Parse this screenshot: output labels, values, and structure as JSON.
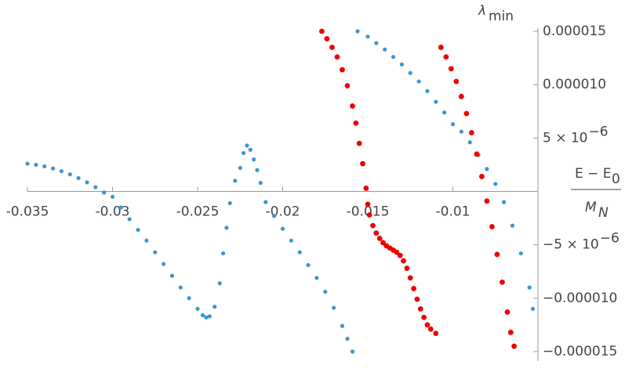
{
  "chart_data": {
    "type": "scatter",
    "ylabel": {
      "text": "λ",
      "sub": "min"
    },
    "xlabel": {
      "numerator": {
        "text": "E − E",
        "sub": "0"
      },
      "denominator": {
        "text": "M",
        "sub": "N"
      }
    },
    "xlim": [
      -0.035,
      -0.005
    ],
    "ylim": [
      -1.5e-05,
      1.5e-05
    ],
    "xticks": [
      -0.035,
      -0.03,
      -0.025,
      -0.02,
      -0.015,
      -0.01
    ],
    "yticks": [
      {
        "value": -1.5e-05,
        "label": "−0.000015"
      },
      {
        "value": -1e-05,
        "label": "−0.000010"
      },
      {
        "value": -5e-06,
        "label": "−5 × 10",
        "exponent": "−6"
      },
      {
        "value": 5e-06,
        "label": "5 × 10",
        "exponent": "−6"
      },
      {
        "value": 1e-05,
        "label": "0.000010"
      },
      {
        "value": 1.5e-05,
        "label": "0.000015"
      }
    ],
    "series": [
      {
        "color": "#3a96cf",
        "x": [
          -0.035,
          -0.0345,
          -0.034,
          -0.0335,
          -0.033,
          -0.0325,
          -0.032,
          -0.0315,
          -0.031,
          -0.0305,
          -0.03,
          -0.0295,
          -0.029,
          -0.0285,
          -0.028,
          -0.0275,
          -0.027,
          -0.0265,
          -0.026,
          -0.0255,
          -0.025,
          -0.0247,
          -0.0245,
          -0.0243,
          -0.024,
          -0.0237,
          -0.0235,
          -0.0233,
          -0.0231,
          -0.0228,
          -0.0225,
          -0.0223,
          -0.0221,
          -0.0219,
          -0.0217,
          -0.0215,
          -0.0213,
          -0.021,
          -0.0205,
          -0.02,
          -0.0195,
          -0.019,
          -0.0185,
          -0.018,
          -0.0175,
          -0.017,
          -0.0165,
          -0.0162,
          -0.0159,
          -0.0156,
          -0.015,
          -0.0145,
          -0.014,
          -0.0135,
          -0.013,
          -0.0125,
          -0.012,
          -0.0115,
          -0.011,
          -0.0105,
          -0.01,
          -0.0095,
          -0.009,
          -0.0085,
          -0.008,
          -0.0075,
          -0.007,
          -0.0065,
          -0.006,
          -0.0055,
          -0.0053
        ],
        "values": [
          2.6e-06,
          2.5e-06,
          2.35e-06,
          2.15e-06,
          1.9e-06,
          1.6e-06,
          1.25e-06,
          8.5e-07,
          4e-07,
          -1e-07,
          -5e-07,
          -1.5e-06,
          -2.6e-06,
          -3.6e-06,
          -4.6e-06,
          -5.7e-06,
          -6.8e-06,
          -7.9e-06,
          -9e-06,
          -1e-05,
          -1.1e-05,
          -1.16e-05,
          -1.18e-05,
          -1.17e-05,
          -1.08e-05,
          -8.6e-06,
          -5.8e-06,
          -3.4e-06,
          -1.1e-06,
          1e-06,
          2.2e-06,
          3.6e-06,
          4.3e-06,
          3.9e-06,
          3e-06,
          2e-06,
          8e-07,
          -1e-06,
          -2.3e-06,
          -3.5e-06,
          -4.6e-06,
          -5.7e-06,
          -6.9e-06,
          -8.1e-06,
          -9.4e-06,
          -1.09e-05,
          -1.26e-05,
          -1.38e-05,
          -1.5e-05,
          1.5e-05,
          1.45e-05,
          1.39e-05,
          1.33e-05,
          1.26e-05,
          1.19e-05,
          1.11e-05,
          1.03e-05,
          9.4e-06,
          8.4e-06,
          7.4e-06,
          6.3e-06,
          5.6e-06,
          4.6e-06,
          3.4e-06,
          2.1e-06,
          7e-07,
          -1e-06,
          -3.2e-06,
          -5.8e-06,
          -9e-06,
          -1.1e-05
        ]
      },
      {
        "color": "#ee0000",
        "x": [
          -0.0177,
          -0.0174,
          -0.0171,
          -0.0168,
          -0.0165,
          -0.0162,
          -0.0159,
          -0.0157,
          -0.0155,
          -0.0153,
          -0.0151,
          -0.015,
          -0.0149,
          -0.0147,
          -0.0145,
          -0.0143,
          -0.0141,
          -0.0139,
          -0.0137,
          -0.0135,
          -0.0133,
          -0.0131,
          -0.0129,
          -0.0127,
          -0.0125,
          -0.0123,
          -0.0121,
          -0.0119,
          -0.0117,
          -0.0115,
          -0.0113,
          -0.011,
          -0.0107,
          -0.0104,
          -0.0101,
          -0.0098,
          -0.0095,
          -0.0092,
          -0.0089,
          -0.0086,
          -0.0083,
          -0.008,
          -0.0077,
          -0.0074,
          -0.0071,
          -0.0068,
          -0.0066,
          -0.0064
        ],
        "values": [
          1.5e-05,
          1.43e-05,
          1.35e-05,
          1.26e-05,
          1.14e-05,
          9.9e-06,
          8e-06,
          6.4e-06,
          4.5e-06,
          2.6e-06,
          3e-07,
          -1.2e-06,
          -2.2e-06,
          -3.2e-06,
          -3.9e-06,
          -4.4e-06,
          -4.8e-06,
          -5.1e-06,
          -5.3e-06,
          -5.5e-06,
          -5.7e-06,
          -6e-06,
          -6.5e-06,
          -7.2e-06,
          -8.1e-06,
          -9.1e-06,
          -1.01e-05,
          -1.1e-05,
          -1.18e-05,
          -1.25e-05,
          -1.29e-05,
          -1.33e-05,
          1.35e-05,
          1.26e-05,
          1.15e-05,
          1.03e-05,
          8.9e-06,
          7.3e-06,
          5.5e-06,
          3.5e-06,
          1.4e-06,
          -9e-07,
          -3.3e-06,
          -5.9e-06,
          -8.5e-06,
          -1.13e-05,
          -1.32e-05,
          -1.45e-05
        ]
      }
    ]
  }
}
